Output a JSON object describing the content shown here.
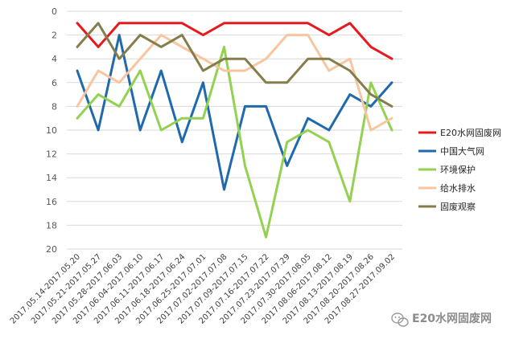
{
  "chart_data": {
    "type": "line",
    "title": "",
    "xlabel": "",
    "ylabel": "",
    "y_axis": {
      "min": 0,
      "max": 20,
      "step": 2,
      "reversed": true
    },
    "grid": "horizontal",
    "legend_position": "right",
    "categories": [
      "2017.05.14-2017.05.20",
      "2017.05.21-2017.05.27",
      "2017.05.28-2017.06.03",
      "2017.06.04-2017.06.10",
      "2017.06.11-2017.06.17",
      "2017.06.18-2017.06.24",
      "2017.06.25-2017.07.01",
      "2017.07.02-2017.07.08",
      "2017.07.09-2017.07.15",
      "2017.07.16-2017.07.22",
      "2017.07.23-2017.07.29",
      "2017.07.30-2017.08.05",
      "2017.08.06-2017.08.12",
      "2017.08.13-2017.08.19",
      "2017.08.20-2017.08.26",
      "2017.08.27-2017.09.02"
    ],
    "series": [
      {
        "name": "E20水网固废网",
        "color": "#e8191c",
        "values": [
          1,
          3,
          1,
          1,
          1,
          1,
          2,
          1,
          1,
          1,
          1,
          1,
          2,
          1,
          3,
          4
        ]
      },
      {
        "name": "中国大气网",
        "color": "#1f69ad",
        "values": [
          5,
          10,
          2,
          10,
          5,
          11,
          6,
          15,
          8,
          8,
          13,
          9,
          10,
          7,
          8,
          6
        ]
      },
      {
        "name": "环境保护",
        "color": "#93d150",
        "values": [
          9,
          7,
          8,
          5,
          10,
          9,
          9,
          3,
          13,
          19,
          11,
          10,
          11,
          16,
          6,
          10
        ]
      },
      {
        "name": "给水排水",
        "color": "#f8c59e",
        "values": [
          8,
          5,
          6,
          4,
          2,
          3,
          4,
          5,
          5,
          4,
          2,
          2,
          5,
          4,
          10,
          9
        ]
      },
      {
        "name": "固废观察",
        "color": "#847d4c",
        "values": [
          3,
          1,
          4,
          2,
          3,
          2,
          5,
          4,
          4,
          6,
          6,
          4,
          4,
          5,
          7,
          8
        ]
      }
    ]
  },
  "watermark": {
    "text": "E20水网固废网",
    "icon": "wechat-icon"
  }
}
